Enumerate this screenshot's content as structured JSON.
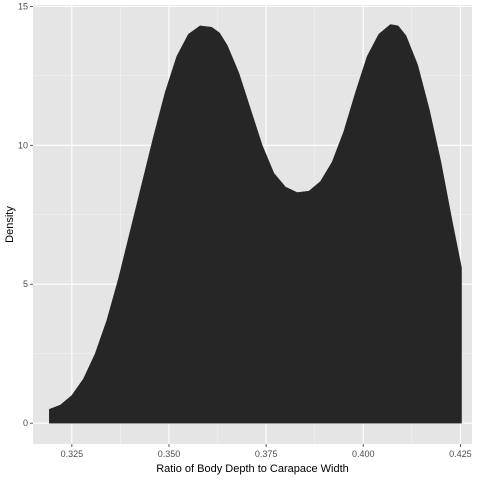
{
  "chart_data": {
    "type": "area",
    "subtype": "density",
    "xlabel": "Ratio of Body Depth to Carapace Width",
    "ylabel": "Density",
    "xlim": [
      0.315,
      0.428
    ],
    "ylim": [
      -0.75,
      15.05
    ],
    "x_ticks": [
      0.325,
      0.35,
      0.375,
      0.4,
      0.425
    ],
    "x_tick_labels": [
      "0.325",
      "0.350",
      "0.375",
      "0.400",
      "0.425"
    ],
    "y_ticks": [
      0,
      5,
      10,
      15
    ],
    "y_tick_labels": [
      "0",
      "5",
      "10",
      "15"
    ],
    "grid": true,
    "colors": {
      "panel_background": "#e5e5e5",
      "grid_major": "#ffffff",
      "grid_minor": "#f2f2f2",
      "fill": "#262626"
    },
    "series": [
      {
        "x": [
          0.3192,
          0.322,
          0.325,
          0.328,
          0.331,
          0.334,
          0.337,
          0.34,
          0.343,
          0.346,
          0.349,
          0.352,
          0.355,
          0.358,
          0.361,
          0.363,
          0.365,
          0.368,
          0.371,
          0.374,
          0.377,
          0.38,
          0.383,
          0.386,
          0.389,
          0.392,
          0.395,
          0.398,
          0.401,
          0.404,
          0.407,
          0.409,
          0.411,
          0.414,
          0.417,
          0.42,
          0.423,
          0.4253
        ],
        "y": [
          0.5,
          0.65,
          1.0,
          1.6,
          2.5,
          3.7,
          5.2,
          6.9,
          8.6,
          10.3,
          11.9,
          13.2,
          14.0,
          14.3,
          14.25,
          14.05,
          13.6,
          12.6,
          11.3,
          10.0,
          9.0,
          8.5,
          8.3,
          8.35,
          8.7,
          9.4,
          10.5,
          11.9,
          13.2,
          14.0,
          14.35,
          14.3,
          13.95,
          12.9,
          11.3,
          9.4,
          7.2,
          5.6
        ]
      }
    ]
  }
}
